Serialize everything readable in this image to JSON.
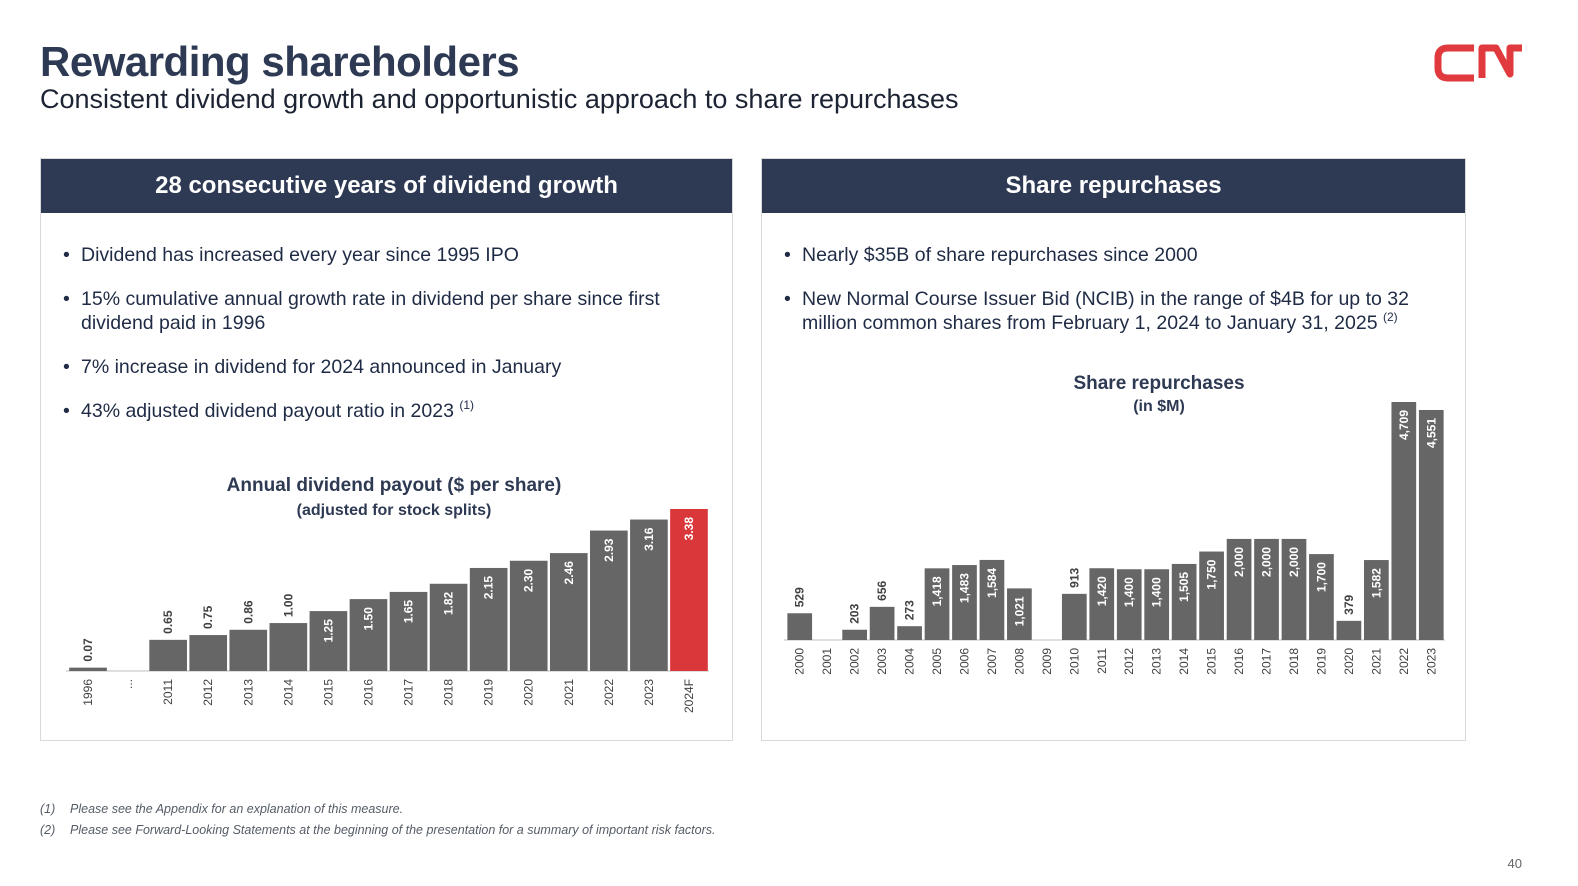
{
  "header": {
    "title": "Rewarding shareholders",
    "subtitle": "Consistent dividend growth and opportunistic approach to share repurchases",
    "logo_text": "CN",
    "logo_color": "#e03a3e"
  },
  "left_panel": {
    "heading": "28 consecutive years of dividend growth",
    "bullets": [
      {
        "text": "Dividend has increased every year since 1995 IPO",
        "note": ""
      },
      {
        "text": "15% cumulative annual growth rate in dividend per share since first dividend paid in 1996",
        "note": ""
      },
      {
        "text": "7% increase in dividend for 2024 announced in January",
        "note": ""
      },
      {
        "text": "43% adjusted dividend payout ratio in 2023",
        "note": "(1)"
      }
    ]
  },
  "right_panel": {
    "heading": "Share repurchases",
    "bullets": [
      {
        "text": "Nearly $35B of share repurchases since 2000",
        "note": ""
      },
      {
        "text": "New Normal Course Issuer Bid (NCIB) in the range of $4B for up to 32 million common shares from February 1, 2024 to January 31, 2025",
        "note": "(2)"
      }
    ]
  },
  "chart_data": [
    {
      "type": "bar",
      "title": "Annual dividend payout ($ per share)",
      "subtitle": "(adjusted for stock splits)",
      "categories": [
        "1996",
        "...",
        "2011",
        "2012",
        "2013",
        "2014",
        "2015",
        "2016",
        "2017",
        "2018",
        "2019",
        "2020",
        "2021",
        "2022",
        "2023",
        "2024F"
      ],
      "values": [
        0.07,
        null,
        0.65,
        0.75,
        0.86,
        1.0,
        1.25,
        1.5,
        1.65,
        1.82,
        2.15,
        2.3,
        2.46,
        2.93,
        3.16,
        3.38
      ],
      "labels": [
        "0.07",
        "",
        "0.65",
        "0.75",
        "0.86",
        "1.00",
        "1.25",
        "1.50",
        "1.65",
        "1.82",
        "2.15",
        "2.30",
        "2.46",
        "2.93",
        "3.16",
        "3.38"
      ],
      "highlight_category": "2024F",
      "bar_color": "#666666",
      "highlight_color": "#d9373a",
      "ylim": [
        0,
        3.38
      ]
    },
    {
      "type": "bar",
      "title": "Share repurchases",
      "subtitle": "(in $M)",
      "categories": [
        "2000",
        "2001",
        "2002",
        "2003",
        "2004",
        "2005",
        "2006",
        "2007",
        "2008",
        "2009",
        "2010",
        "2011",
        "2012",
        "2013",
        "2014",
        "2015",
        "2016",
        "2017",
        "2018",
        "2019",
        "2020",
        "2021",
        "2022",
        "2023"
      ],
      "values": [
        529,
        0,
        203,
        656,
        273,
        1418,
        1483,
        1584,
        1021,
        0,
        913,
        1420,
        1400,
        1400,
        1505,
        1750,
        2000,
        2000,
        2000,
        1700,
        379,
        1582,
        4709,
        4551
      ],
      "labels": [
        "529",
        "",
        "203",
        "656",
        "273",
        "1,418",
        "1,483",
        "1,584",
        "1,021",
        "",
        "913",
        "1,420",
        "1,400",
        "1,400",
        "1,505",
        "1,750",
        "2,000",
        "2,000",
        "2,000",
        "1,700",
        "379",
        "1,582",
        "4,709",
        "4,551"
      ],
      "bar_color": "#666666",
      "ylim": [
        0,
        4709
      ]
    }
  ],
  "footnotes": [
    {
      "num": "(1)",
      "text": "Please see the Appendix for an explanation of this measure."
    },
    {
      "num": "(2)",
      "text": "Please see Forward-Looking Statements at the beginning of the presentation for a summary of important risk factors."
    }
  ],
  "page_number": "40"
}
